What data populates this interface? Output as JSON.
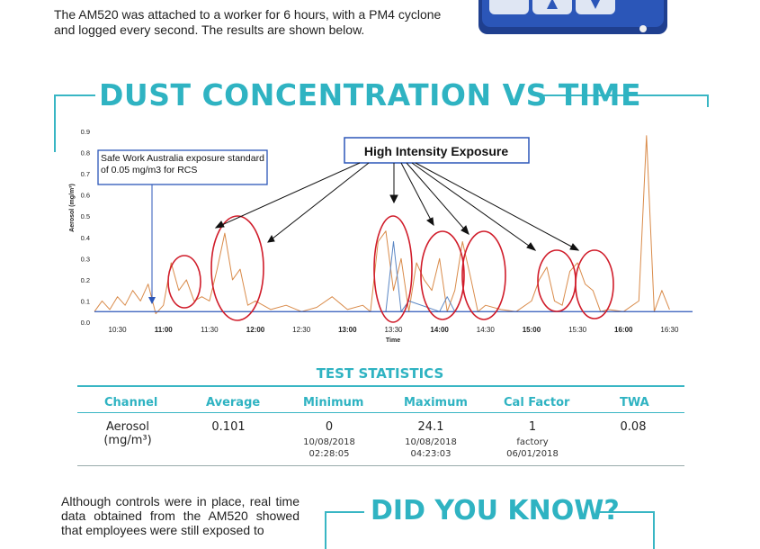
{
  "intro_text": "The AM520 was attached to a worker for 6 hours, with a PM4 cyclone and logged every second. The results are shown below.",
  "section_title": "DUST CONCENTRATION VS TIME",
  "chart_data": {
    "type": "line",
    "xlabel": "Time",
    "ylabel": "Aerosol (mg/m³)",
    "ylim": [
      0,
      0.9
    ],
    "y_ticks": [
      "0.0",
      "0.1",
      "0.2",
      "0.3",
      "0.4",
      "0.5",
      "0.6",
      "0.7",
      "0.8",
      "0.9"
    ],
    "x_ticks": [
      {
        "label": "10:30",
        "bold": false
      },
      {
        "label": "11:00",
        "bold": true
      },
      {
        "label": "11:30",
        "bold": false
      },
      {
        "label": "12:00",
        "bold": true
      },
      {
        "label": "12:30",
        "bold": false
      },
      {
        "label": "13:00",
        "bold": true
      },
      {
        "label": "13:30",
        "bold": false
      },
      {
        "label": "14:00",
        "bold": true
      },
      {
        "label": "14:30",
        "bold": false
      },
      {
        "label": "15:00",
        "bold": true
      },
      {
        "label": "15:30",
        "bold": false
      },
      {
        "label": "16:00",
        "bold": true
      },
      {
        "label": "16:30",
        "bold": false
      }
    ],
    "series": [
      {
        "color": "#d98b4a",
        "x": [
          "10:15",
          "10:20",
          "10:25",
          "10:30",
          "10:35",
          "10:40",
          "10:45",
          "10:50",
          "10:55",
          "11:00",
          "11:05",
          "11:10",
          "11:15",
          "11:20",
          "11:25",
          "11:30",
          "11:35",
          "11:40",
          "11:45",
          "11:50",
          "11:55",
          "12:00",
          "12:10",
          "12:20",
          "12:30",
          "12:40",
          "12:50",
          "13:00",
          "13:10",
          "13:15",
          "13:20",
          "13:25",
          "13:30",
          "13:35",
          "13:40",
          "13:45",
          "13:50",
          "13:55",
          "14:00",
          "14:05",
          "14:10",
          "14:15",
          "14:20",
          "14:25",
          "14:30",
          "14:40",
          "14:50",
          "15:00",
          "15:05",
          "15:10",
          "15:15",
          "15:20",
          "15:25",
          "15:30",
          "15:35",
          "15:40",
          "15:45",
          "15:50",
          "16:00",
          "16:10",
          "16:15",
          "16:20",
          "16:25",
          "16:30"
        ],
        "y": [
          0.05,
          0.1,
          0.06,
          0.12,
          0.08,
          0.15,
          0.1,
          0.18,
          0.04,
          0.08,
          0.28,
          0.15,
          0.2,
          0.1,
          0.12,
          0.1,
          0.25,
          0.42,
          0.2,
          0.25,
          0.08,
          0.1,
          0.06,
          0.08,
          0.05,
          0.07,
          0.12,
          0.06,
          0.08,
          0.05,
          0.38,
          0.43,
          0.15,
          0.3,
          0.05,
          0.28,
          0.2,
          0.15,
          0.3,
          0.05,
          0.15,
          0.38,
          0.22,
          0.05,
          0.08,
          0.06,
          0.05,
          0.1,
          0.2,
          0.26,
          0.1,
          0.08,
          0.24,
          0.28,
          0.18,
          0.15,
          0.05,
          0.06,
          0.05,
          0.1,
          0.88,
          0.05,
          0.15,
          0.06
        ]
      },
      {
        "color": "#5a86c4",
        "x": [
          "13:25",
          "13:30",
          "13:35",
          "13:40",
          "14:00",
          "14:05",
          "14:10"
        ],
        "y": [
          0.05,
          0.38,
          0.05,
          0.1,
          0.05,
          0.12,
          0.05
        ]
      }
    ],
    "threshold": 0.05,
    "annotations": {
      "high_intensity": "High Intensity Exposure",
      "standard": "Safe Work Australia exposure standard of 0.05 mg/m3 for RCS"
    }
  },
  "stats": {
    "title": "TEST STATISTICS",
    "headers": [
      "Channel",
      "Average",
      "Minimum",
      "Maximum",
      "Cal Factor",
      "TWA"
    ],
    "channel_line1": "Aerosol",
    "channel_line2": "(mg/m³)",
    "average": "0.101",
    "minimum": "0",
    "minimum_date": "10/08/2018",
    "minimum_time": "02:28:05",
    "maximum": "24.1",
    "maximum_date": "10/08/2018",
    "maximum_time": "04:23:03",
    "cal_factor": "1",
    "cal_factor_sub": "factory",
    "cal_factor_date": "06/01/2018",
    "twa": "0.08"
  },
  "outro_text": "Although controls were in place, real time data obtained from the AM520 showed that employees were still exposed to",
  "did_you_know": "DID YOU KNOW?"
}
